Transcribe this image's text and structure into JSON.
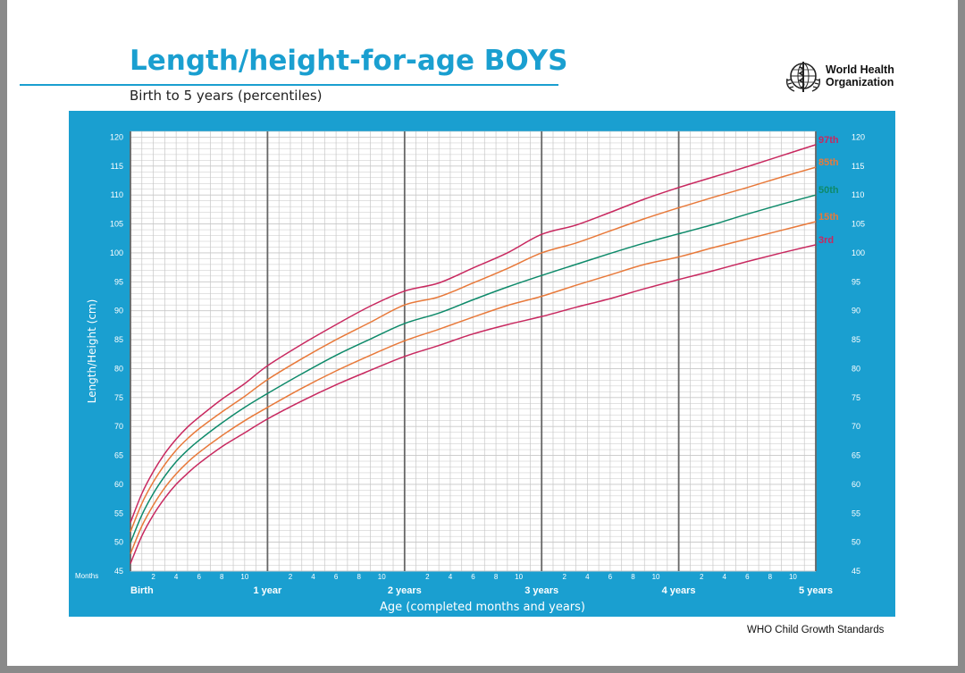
{
  "header": {
    "title": "Length/height-for-age BOYS",
    "subtitle": "Birth to 5 years (percentiles)",
    "org_line1": "World Health",
    "org_line2": "Organization",
    "logo_icon": "who-emblem-icon"
  },
  "footer": {
    "text": "WHO Child Growth Standards"
  },
  "colors": {
    "frame": "#1a9fd0",
    "grid": "#c7c7c7",
    "major_grid": "#666666",
    "p3": "#c8285f",
    "p15": "#e8793a",
    "p50": "#0e8a6a",
    "p85": "#e8793a",
    "p97": "#c8285f"
  },
  "chart_data": {
    "type": "line",
    "title": "Length/height-for-age BOYS",
    "subtitle": "Birth to 5 years (percentiles)",
    "xlabel": "Age (completed months and years)",
    "ylabel": "Length/Height (cm)",
    "x_unit_label": "Months",
    "xlim": [
      0,
      60
    ],
    "ylim": [
      45,
      121
    ],
    "y_ticks": [
      45,
      50,
      55,
      60,
      65,
      70,
      75,
      80,
      85,
      90,
      95,
      100,
      105,
      110,
      115,
      120
    ],
    "month_ticks": [
      2,
      4,
      6,
      8,
      10
    ],
    "year_labels": [
      "Birth",
      "1 year",
      "2 years",
      "3 years",
      "4 years",
      "5 years"
    ],
    "grid": true,
    "legend": "right-end labels",
    "x": [
      0,
      1,
      2,
      3,
      4,
      5,
      6,
      8,
      10,
      12,
      15,
      18,
      21,
      24,
      27,
      30,
      33,
      36,
      39,
      42,
      45,
      48,
      51,
      54,
      57,
      60
    ],
    "series": [
      {
        "name": "97th",
        "color": "#c8285f",
        "values": [
          53.4,
          58.4,
          62.2,
          65.3,
          67.8,
          69.9,
          71.6,
          74.7,
          77.4,
          80.5,
          84.2,
          87.6,
          90.8,
          93.4,
          94.8,
          97.4,
          100.0,
          103.2,
          104.8,
          107.0,
          109.3,
          111.3,
          113.1,
          114.9,
          116.8,
          118.7
        ]
      },
      {
        "name": "85th",
        "color": "#e8793a",
        "values": [
          51.8,
          56.7,
          60.4,
          63.4,
          65.9,
          67.9,
          69.6,
          72.5,
          75.2,
          78.1,
          81.7,
          85.0,
          88.0,
          91.0,
          92.4,
          94.8,
          97.3,
          100.0,
          101.7,
          103.8,
          105.9,
          107.8,
          109.6,
          111.3,
          113.1,
          114.8
        ]
      },
      {
        "name": "50th",
        "color": "#0e8a6a",
        "values": [
          49.9,
          54.7,
          58.4,
          61.4,
          63.9,
          65.9,
          67.6,
          70.6,
          73.3,
          75.7,
          79.1,
          82.3,
          85.1,
          87.8,
          89.6,
          91.9,
          94.1,
          96.1,
          98.0,
          99.9,
          101.7,
          103.3,
          104.9,
          106.7,
          108.4,
          110.0
        ]
      },
      {
        "name": "15th",
        "color": "#e8793a",
        "values": [
          48.0,
          52.8,
          56.4,
          59.4,
          61.8,
          63.8,
          65.5,
          68.4,
          71.0,
          73.3,
          76.6,
          79.6,
          82.3,
          84.8,
          86.8,
          88.9,
          90.9,
          92.5,
          94.4,
          96.2,
          98.0,
          99.3,
          100.9,
          102.4,
          103.9,
          105.4
        ]
      },
      {
        "name": "3rd",
        "color": "#c8285f",
        "values": [
          46.3,
          51.1,
          54.7,
          57.6,
          60.0,
          61.9,
          63.6,
          66.5,
          68.9,
          71.3,
          74.4,
          77.2,
          79.7,
          82.1,
          84.0,
          86.0,
          87.6,
          89.0,
          90.6,
          92.1,
          93.8,
          95.4,
          96.9,
          98.5,
          100.0,
          101.4
        ]
      }
    ]
  }
}
